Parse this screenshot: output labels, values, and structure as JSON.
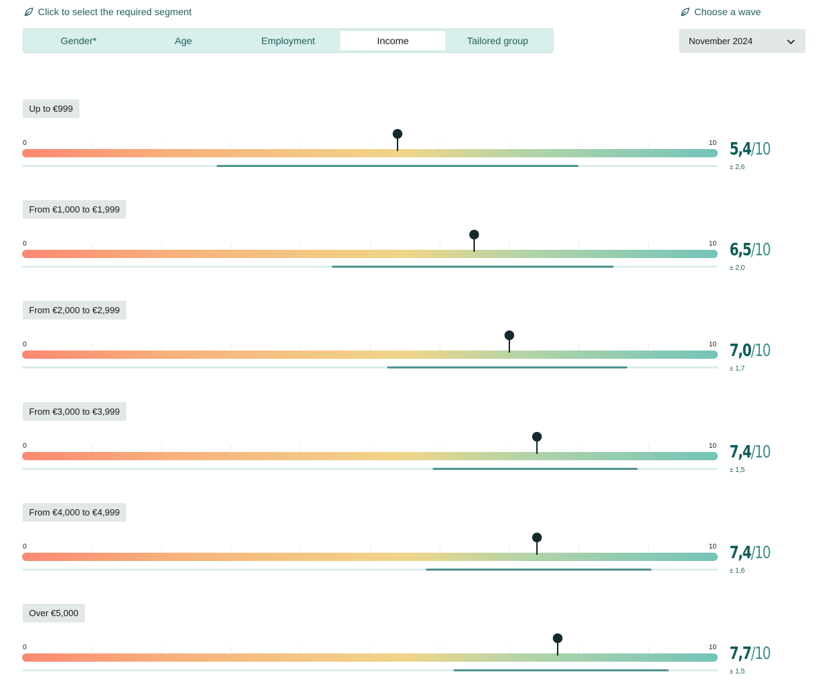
{
  "segment_hint": {
    "icon": "leaf-icon",
    "text": "Click to select the required segment"
  },
  "wave_hint": {
    "icon": "leaf-icon",
    "text": "Choose a wave"
  },
  "tabs": [
    {
      "label": "Gender*",
      "active": false
    },
    {
      "label": "Age",
      "active": false
    },
    {
      "label": "Employment",
      "active": false
    },
    {
      "label": "Income",
      "active": true
    },
    {
      "label": "Tailored group",
      "active": false
    }
  ],
  "wave_select": {
    "value": "November 2024",
    "icon": "chevron-down-icon"
  },
  "scale": {
    "min": 0,
    "max": 10,
    "min_label": "0",
    "max_label": "10"
  },
  "colors": {
    "accent": "#0e5d57",
    "ci": "#4f9690",
    "pin": "#13292b",
    "gradient_start": "#fd8872",
    "gradient_end": "#73c4ba"
  },
  "segments": [
    {
      "label": "Up to €999",
      "value": 5.4,
      "score": "5,4",
      "denominator": "/10",
      "spread": "± 2,6",
      "ci_low": 2.8,
      "ci_high": 8.0
    },
    {
      "label": "From €1,000 to €1,999",
      "value": 6.5,
      "score": "6,5",
      "denominator": "/10",
      "spread": "± 2,0",
      "ci_low": 4.45,
      "ci_high": 8.5
    },
    {
      "label": "From €2,000 to €2,999",
      "value": 7.0,
      "score": "7,0",
      "denominator": "/10",
      "spread": "± 1,7",
      "ci_low": 5.25,
      "ci_high": 8.7
    },
    {
      "label": "From €3,000 to €3,999",
      "value": 7.4,
      "score": "7,4",
      "denominator": "/10",
      "spread": "± 1,5",
      "ci_low": 5.9,
      "ci_high": 8.85
    },
    {
      "label": "From €4,000 to €4,999",
      "value": 7.4,
      "score": "7,4",
      "denominator": "/10",
      "spread": "± 1,6",
      "ci_low": 5.8,
      "ci_high": 9.05
    },
    {
      "label": "Over €5,000",
      "value": 7.7,
      "score": "7,7",
      "denominator": "/10",
      "spread": "± 1,5",
      "ci_low": 6.2,
      "ci_high": 9.3
    }
  ]
}
